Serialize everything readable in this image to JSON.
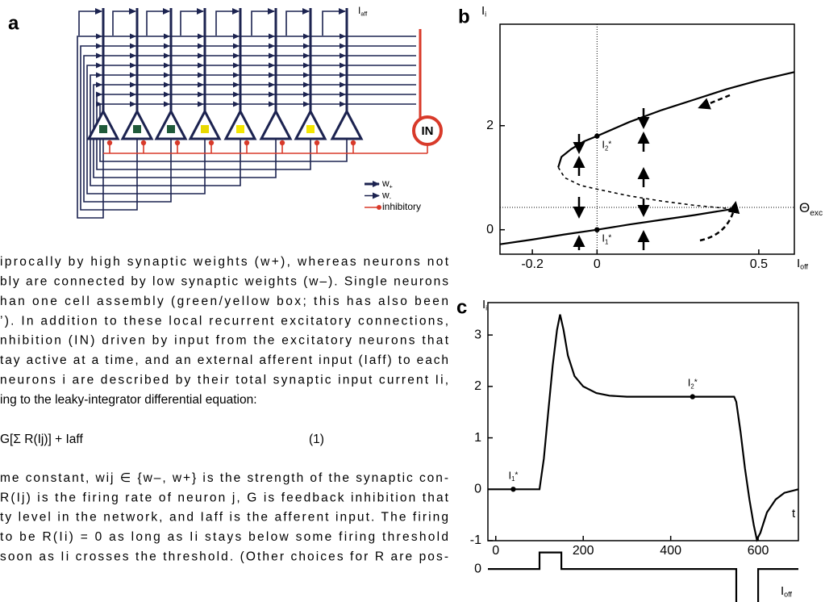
{
  "figure_a": {
    "label": "a",
    "afferent": {
      "main": "I",
      "sub": "aff"
    },
    "inhibitory_neuron": "IN",
    "legend": [
      {
        "main": "w",
        "sub": "+"
      },
      {
        "main": "w",
        "sub": "-"
      },
      {
        "main": "inhibitory"
      }
    ]
  },
  "text": {
    "lines_before": [
      "iprocally by high synaptic weights (w+), whereas neurons not",
      "bly are connected by low synaptic weights (w–). Single neurons",
      "han one cell assembly (green/yellow box; this has also been",
      "’). In addition to these local recurrent excitatory connections,",
      "nhibition (IN) driven by input from the excitatory neurons that",
      "tay active at a time, and an external afferent input (Iaff) to each",
      "neurons i are described by their total synaptic input current Ii,",
      "ing to the leaky-integrator differential equation:"
    ],
    "equation": "G[Σ R(Ij)] + Iaff",
    "equation_number": "(1)",
    "lines_after": [
      "me constant, wij ∈ {w–, w+} is the strength of the synaptic con-",
      "R(Ij) is the firing rate of neuron j, G is feedback inhibition that",
      "ty level in the network, and Iaff is the afferent input. The firing",
      "to be R(Ii) = 0 as long as Ii stays below some firing threshold",
      "soon as Ii crosses the threshold. (Other choices for R are pos-"
    ]
  },
  "chart_data": [
    {
      "type": "line",
      "label": "b",
      "ylabel": {
        "main": "I",
        "sub": "i"
      },
      "xlabel": {
        "main": "I",
        "sub": "off"
      },
      "xlim": [
        -0.3,
        0.61
      ],
      "ylim": [
        -0.47,
        3.95
      ],
      "xticks": [
        -0.2,
        0,
        0.5
      ],
      "yticks": [
        0,
        2
      ],
      "frame": true,
      "vline": 0,
      "threshold": {
        "value": 0.43,
        "label": {
          "main": "Θ",
          "sub": "exc"
        }
      },
      "series": [
        {
          "style": "solid",
          "color": "#000000",
          "x": [
            -0.12,
            -0.11,
            -0.08,
            -0.04,
            0,
            0.1,
            0.2,
            0.3,
            0.4,
            0.5,
            0.61
          ],
          "values": [
            1.2,
            1.4,
            1.55,
            1.7,
            1.8,
            2.07,
            2.3,
            2.5,
            2.7,
            2.87,
            3.03
          ]
        },
        {
          "style": "dashed",
          "color": "#000000",
          "x": [
            -0.12,
            -0.1,
            -0.05,
            0,
            0.1,
            0.2,
            0.3,
            0.42
          ],
          "values": [
            1.2,
            1.0,
            0.85,
            0.78,
            0.65,
            0.55,
            0.47,
            0.4
          ]
        },
        {
          "style": "solid",
          "color": "#000000",
          "x": [
            -0.3,
            -0.2,
            -0.1,
            0,
            0.1,
            0.2,
            0.3,
            0.42
          ],
          "values": [
            -0.28,
            -0.19,
            -0.09,
            0,
            0.1,
            0.19,
            0.28,
            0.4
          ]
        }
      ],
      "points": [
        {
          "label": {
            "main": "I",
            "sub": "2",
            "mark": "*"
          },
          "x": 0,
          "value": 1.8
        },
        {
          "label": {
            "main": "I",
            "sub": "1",
            "mark": "*"
          },
          "x": 0,
          "value": 0
        }
      ]
    },
    {
      "type": "line",
      "label": "c",
      "ylabel": {
        "main": "I",
        "sub": "i"
      },
      "xlabel": {
        "main": "t"
      },
      "xlim": [
        -18,
        692
      ],
      "ylim": [
        -1,
        3.63
      ],
      "xticks": [
        0,
        200,
        400,
        600
      ],
      "yticks": [
        -1,
        0,
        1,
        2,
        3
      ],
      "frame": true,
      "series": [
        {
          "style": "solid",
          "color": "#000000",
          "x": [
            -18,
            100,
            110,
            120,
            130,
            140,
            147,
            155,
            165,
            180,
            200,
            230,
            260,
            300,
            545,
            550,
            560,
            570,
            580,
            590,
            597,
            605,
            620,
            640,
            660,
            692
          ],
          "values": [
            0,
            0,
            0.6,
            1.5,
            2.4,
            3.1,
            3.4,
            3.1,
            2.6,
            2.2,
            2.0,
            1.87,
            1.82,
            1.8,
            1.8,
            1.7,
            1.1,
            0.4,
            -0.2,
            -0.7,
            -0.98,
            -0.85,
            -0.45,
            -0.2,
            -0.07,
            0
          ]
        }
      ],
      "points": [
        {
          "label": {
            "main": "I",
            "sub": "1",
            "mark": "*"
          },
          "x": 40,
          "value": 0
        },
        {
          "label": {
            "main": "I",
            "sub": "2",
            "mark": "*"
          },
          "x": 450,
          "value": 1.8
        }
      ]
    },
    {
      "type": "line",
      "ylabel": {
        "main": "I",
        "sub": "off"
      },
      "xlim": [
        -18,
        692
      ],
      "ylim": [
        -1.4,
        1.2
      ],
      "yticks": [
        0
      ],
      "frame": false,
      "series": [
        {
          "style": "solid",
          "color": "#000000",
          "x": [
            -18,
            100,
            100,
            150,
            150,
            550,
            550,
            575,
            600,
            600,
            692
          ],
          "values": [
            0,
            0,
            0.7,
            0.7,
            0,
            0,
            -1.4,
            null,
            -1.4,
            0,
            0
          ]
        }
      ]
    }
  ]
}
